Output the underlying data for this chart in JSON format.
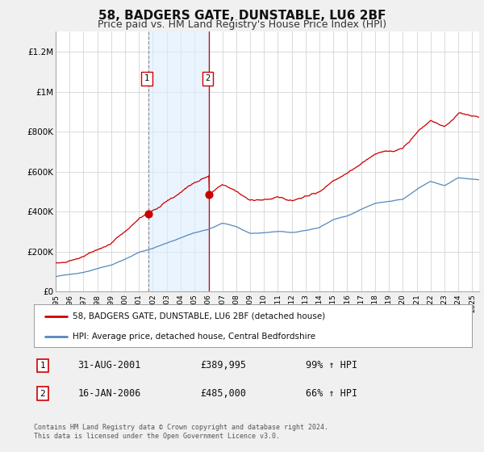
{
  "title": "58, BADGERS GATE, DUNSTABLE, LU6 2BF",
  "subtitle": "Price paid vs. HM Land Registry's House Price Index (HPI)",
  "title_fontsize": 11,
  "subtitle_fontsize": 9,
  "ylim": [
    0,
    1300000
  ],
  "xlim_start": 1995.0,
  "xlim_end": 2025.5,
  "yticks": [
    0,
    200000,
    400000,
    600000,
    800000,
    1000000,
    1200000
  ],
  "ytick_labels": [
    "£0",
    "£200K",
    "£400K",
    "£600K",
    "£800K",
    "£1M",
    "£1.2M"
  ],
  "xticks": [
    1995,
    1996,
    1997,
    1998,
    1999,
    2000,
    2001,
    2002,
    2003,
    2004,
    2005,
    2006,
    2007,
    2008,
    2009,
    2010,
    2011,
    2012,
    2013,
    2014,
    2015,
    2016,
    2017,
    2018,
    2019,
    2020,
    2021,
    2022,
    2023,
    2024,
    2025
  ],
  "red_line_color": "#cc0000",
  "blue_line_color": "#5588bb",
  "shade_color": "#ddeeff",
  "shade_alpha": 0.6,
  "marker1_x": 2001.667,
  "marker1_y": 389995,
  "marker2_x": 2006.042,
  "marker2_y": 485000,
  "legend_label_red": "58, BADGERS GATE, DUNSTABLE, LU6 2BF (detached house)",
  "legend_label_blue": "HPI: Average price, detached house, Central Bedfordshire",
  "footer": "Contains HM Land Registry data © Crown copyright and database right 2024.\nThis data is licensed under the Open Government Licence v3.0.",
  "bg_color": "#f0f0f0",
  "plot_bg_color": "#ffffff",
  "grid_color": "#cccccc"
}
